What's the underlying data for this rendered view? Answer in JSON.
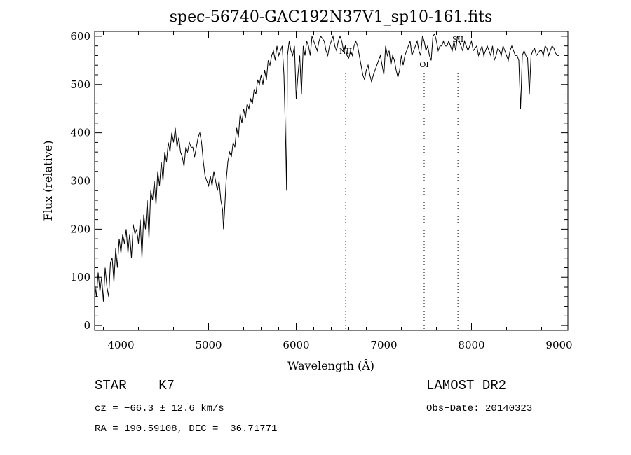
{
  "chart_data": {
    "type": "line",
    "title": "spec-56740-GAC192N37V1_sp10-161.fits",
    "xlabel": "Wavelength (Å)",
    "ylabel": "Flux (relative)",
    "xlim": [
      3700,
      9100
    ],
    "ylim": [
      -10,
      610
    ],
    "xticks": [
      4000,
      5000,
      6000,
      7000,
      8000,
      9000
    ],
    "yticks": [
      0,
      100,
      200,
      300,
      400,
      500,
      600
    ],
    "grid": false,
    "series": [
      {
        "x": [
          3700,
          3720,
          3740,
          3760,
          3780,
          3800,
          3820,
          3840,
          3860,
          3880,
          3900,
          3920,
          3940,
          3960,
          3980,
          4000,
          4020,
          4040,
          4060,
          4080,
          4100,
          4120,
          4140,
          4160,
          4180,
          4200,
          4220,
          4240,
          4260,
          4280,
          4300,
          4320,
          4340,
          4360,
          4380,
          4400,
          4420,
          4440,
          4460,
          4480,
          4500,
          4520,
          4540,
          4560,
          4580,
          4600,
          4620,
          4640,
          4660,
          4680,
          4700,
          4720,
          4740,
          4760,
          4780,
          4800,
          4820,
          4840,
          4860,
          4880,
          4900,
          4920,
          4940,
          4960,
          4980,
          5000,
          5020,
          5040,
          5060,
          5080,
          5100,
          5120,
          5140,
          5160,
          5170,
          5180,
          5200,
          5220,
          5240,
          5260,
          5280,
          5300,
          5320,
          5340,
          5360,
          5380,
          5400,
          5420,
          5440,
          5460,
          5480,
          5500,
          5520,
          5540,
          5560,
          5580,
          5600,
          5620,
          5640,
          5660,
          5680,
          5700,
          5720,
          5740,
          5760,
          5780,
          5800,
          5820,
          5840,
          5860,
          5880,
          5890,
          5900,
          5920,
          5940,
          5960,
          5980,
          6000,
          6020,
          6040,
          6060,
          6080,
          6100,
          6120,
          6140,
          6160,
          6180,
          6200,
          6220,
          6240,
          6260,
          6280,
          6300,
          6320,
          6340,
          6360,
          6380,
          6400,
          6420,
          6440,
          6460,
          6480,
          6500,
          6520,
          6540,
          6560,
          6580,
          6600,
          6620,
          6640,
          6660,
          6680,
          6700,
          6720,
          6740,
          6760,
          6780,
          6800,
          6820,
          6840,
          6860,
          6880,
          6900,
          6920,
          6940,
          6960,
          6980,
          7000,
          7020,
          7040,
          7060,
          7080,
          7100,
          7120,
          7140,
          7160,
          7180,
          7200,
          7220,
          7240,
          7260,
          7280,
          7300,
          7320,
          7340,
          7360,
          7380,
          7400,
          7420,
          7440,
          7460,
          7480,
          7500,
          7520,
          7540,
          7560,
          7580,
          7600,
          7620,
          7640,
          7660,
          7680,
          7700,
          7720,
          7740,
          7760,
          7780,
          7800,
          7820,
          7840,
          7860,
          7880,
          7900,
          7920,
          7940,
          7960,
          7980,
          8000,
          8020,
          8040,
          8060,
          8080,
          8100,
          8120,
          8140,
          8160,
          8180,
          8200,
          8220,
          8240,
          8260,
          8280,
          8300,
          8320,
          8340,
          8360,
          8380,
          8400,
          8420,
          8440,
          8460,
          8480,
          8500,
          8520,
          8540,
          8560,
          8580,
          8600,
          8620,
          8640,
          8660,
          8680,
          8700,
          8720,
          8740,
          8760,
          8780,
          8800,
          8820,
          8840,
          8860,
          8880,
          8900,
          8920,
          8940,
          8960,
          8980,
          9000
        ],
        "y": [
          90,
          60,
          110,
          70,
          100,
          50,
          120,
          80,
          60,
          130,
          140,
          90,
          160,
          120,
          180,
          150,
          190,
          170,
          200,
          150,
          190,
          140,
          210,
          190,
          200,
          170,
          220,
          140,
          230,
          200,
          260,
          180,
          280,
          260,
          300,
          250,
          320,
          290,
          340,
          300,
          360,
          340,
          380,
          360,
          400,
          380,
          410,
          370,
          390,
          360,
          350,
          330,
          370,
          360,
          380,
          370,
          370,
          350,
          370,
          390,
          400,
          380,
          340,
          310,
          300,
          290,
          310,
          290,
          320,
          300,
          280,
          300,
          260,
          240,
          200,
          230,
          300,
          340,
          360,
          350,
          380,
          370,
          410,
          390,
          440,
          420,
          450,
          430,
          460,
          450,
          470,
          460,
          490,
          480,
          510,
          500,
          520,
          500,
          530,
          510,
          550,
          540,
          560,
          570,
          550,
          580,
          560,
          570,
          580,
          520,
          380,
          280,
          560,
          590,
          570,
          560,
          580,
          470,
          520,
          560,
          480,
          580,
          560,
          590,
          580,
          560,
          600,
          590,
          580,
          570,
          590,
          600,
          595,
          590,
          570,
          560,
          580,
          590,
          600,
          580,
          570,
          590,
          600,
          590,
          570,
          580,
          560,
          555,
          570,
          560,
          580,
          590,
          580,
          560,
          540,
          520,
          510,
          530,
          540,
          520,
          505,
          520,
          530,
          540,
          550,
          560,
          540,
          520,
          580,
          560,
          570,
          540,
          560,
          550,
          530,
          515,
          530,
          560,
          540,
          560,
          570,
          580,
          590,
          560,
          570,
          580,
          590,
          570,
          560,
          600,
          590,
          570,
          580,
          560,
          550,
          600,
          605,
          590,
          570,
          580,
          580,
          590,
          580,
          580,
          590,
          580,
          570,
          590,
          570,
          600,
          590,
          580,
          570,
          590,
          580,
          570,
          580,
          590,
          570,
          575,
          580,
          560,
          570,
          580,
          560,
          570,
          580,
          570,
          560,
          580,
          550,
          560,
          575,
          570,
          560,
          580,
          570,
          560,
          550,
          570,
          580,
          570,
          560,
          560,
          550,
          450,
          560,
          570,
          560,
          555,
          480,
          560,
          570,
          575,
          560,
          565,
          570,
          570,
          560,
          580,
          575,
          560,
          570,
          580,
          575,
          565,
          560,
          560
        ]
      }
    ],
    "line_markers": [
      {
        "x": 6565,
        "label": "NII"
      },
      {
        "x": 7460,
        "label": "OI"
      },
      {
        "x": 7845,
        "label": "SII"
      }
    ]
  },
  "info": {
    "object_line": "STAR    K7",
    "survey": "LAMOST DR2",
    "cz": "cz = −66.3 ± 12.6 km/s",
    "obs_date": "Obs−Date: 20140323",
    "coords": "RA = 190.59108, DEC =  36.71771"
  }
}
